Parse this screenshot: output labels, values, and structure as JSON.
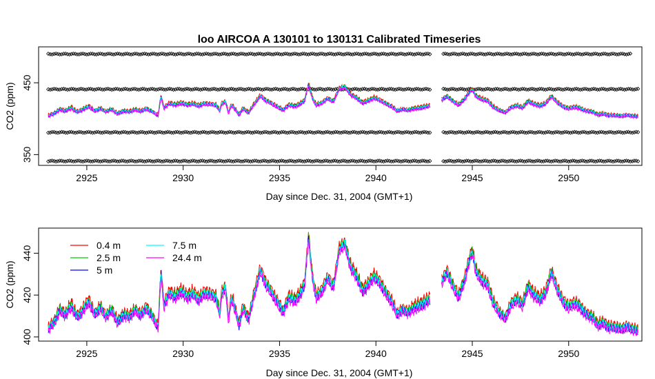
{
  "chart_data": [
    {
      "type": "scatter",
      "title": "loo   AIRCOA  A    130101  to  130131   Calibrated Timeseries",
      "xlabel": "Day since Dec. 31, 2004 (GMT+1)",
      "ylabel": "CO2 (ppm)",
      "xlim": [
        2922.5,
        2953.8
      ],
      "ylim": [
        335,
        500
      ],
      "x_ticks": [
        2925,
        2930,
        2935,
        2940,
        2945,
        2950
      ],
      "x_tick_labels": [
        "2925",
        "2930",
        "2935",
        "2940",
        "2945",
        "2950"
      ],
      "y_ticks": [
        350,
        450
      ],
      "y_tick_labels": [
        "350",
        "450"
      ],
      "calibration_levels": [
        490,
        441,
        381,
        341
      ],
      "data_gap": [
        2942.8,
        2943.4
      ],
      "series_colors": [
        "#ff0000",
        "#00cc00",
        "#0000ff",
        "#00ffff",
        "#ff00ff"
      ],
      "marker_color": "#000000",
      "grid": false
    },
    {
      "type": "line",
      "xlabel": "Day since Dec. 31, 2004 (GMT+1)",
      "ylabel": "CO2 (ppm)",
      "xlim": [
        2922.5,
        2953.8
      ],
      "ylim": [
        398,
        452
      ],
      "x_ticks": [
        2925,
        2930,
        2935,
        2940,
        2945,
        2950
      ],
      "x_tick_labels": [
        "2925",
        "2930",
        "2935",
        "2940",
        "2945",
        "2950"
      ],
      "y_ticks": [
        400,
        420,
        440
      ],
      "y_tick_labels": [
        "400",
        "420",
        "440"
      ],
      "legend_position": "top-left",
      "grid": false,
      "data_gap": [
        2942.8,
        2943.4
      ],
      "base_points": [
        [
          2923.0,
          403
        ],
        [
          2923.3,
          406
        ],
        [
          2923.6,
          412
        ],
        [
          2923.9,
          410
        ],
        [
          2924.2,
          414
        ],
        [
          2924.5,
          409
        ],
        [
          2924.8,
          412
        ],
        [
          2925.1,
          416
        ],
        [
          2925.4,
          410
        ],
        [
          2925.7,
          413
        ],
        [
          2926.0,
          409
        ],
        [
          2926.3,
          412
        ],
        [
          2926.6,
          406
        ],
        [
          2926.9,
          410
        ],
        [
          2927.2,
          409
        ],
        [
          2927.5,
          412
        ],
        [
          2927.8,
          410
        ],
        [
          2928.1,
          413
        ],
        [
          2928.4,
          409
        ],
        [
          2928.7,
          404
        ],
        [
          2928.85,
          430
        ],
        [
          2929.0,
          414
        ],
        [
          2929.3,
          420
        ],
        [
          2929.6,
          418
        ],
        [
          2929.9,
          421
        ],
        [
          2930.2,
          418
        ],
        [
          2930.5,
          420
        ],
        [
          2930.8,
          417
        ],
        [
          2931.1,
          420
        ],
        [
          2931.4,
          419
        ],
        [
          2931.7,
          418
        ],
        [
          2931.9,
          410
        ],
        [
          2932.0,
          420
        ],
        [
          2932.2,
          422
        ],
        [
          2932.35,
          407
        ],
        [
          2932.5,
          418
        ],
        [
          2932.7,
          412
        ],
        [
          2932.9,
          405
        ],
        [
          2933.1,
          413
        ],
        [
          2933.4,
          408
        ],
        [
          2933.7,
          420
        ],
        [
          2934.0,
          431
        ],
        [
          2934.3,
          424
        ],
        [
          2934.6,
          420
        ],
        [
          2934.9,
          415
        ],
        [
          2935.2,
          411
        ],
        [
          2935.5,
          418
        ],
        [
          2935.8,
          416
        ],
        [
          2936.1,
          420
        ],
        [
          2936.3,
          424
        ],
        [
          2936.5,
          447
        ],
        [
          2936.7,
          428
        ],
        [
          2936.9,
          418
        ],
        [
          2937.2,
          421
        ],
        [
          2937.5,
          427
        ],
        [
          2937.8,
          423
        ],
        [
          2938.1,
          441
        ],
        [
          2938.4,
          443
        ],
        [
          2938.7,
          432
        ],
        [
          2939.0,
          428
        ],
        [
          2939.3,
          421
        ],
        [
          2939.6,
          424
        ],
        [
          2939.9,
          428
        ],
        [
          2940.2,
          425
        ],
        [
          2940.5,
          420
        ],
        [
          2940.8,
          416
        ],
        [
          2941.1,
          410
        ],
        [
          2941.4,
          412
        ],
        [
          2941.7,
          411
        ],
        [
          2942.0,
          413
        ],
        [
          2942.3,
          414
        ],
        [
          2942.6,
          416
        ],
        [
          2942.8,
          417
        ],
        null,
        [
          2943.4,
          425
        ],
        [
          2943.7,
          430
        ],
        [
          2944.0,
          423
        ],
        [
          2944.3,
          418
        ],
        [
          2944.6,
          426
        ],
        [
          2944.8,
          434
        ],
        [
          2945.0,
          440
        ],
        [
          2945.2,
          430
        ],
        [
          2945.5,
          426
        ],
        [
          2945.8,
          424
        ],
        [
          2946.1,
          415
        ],
        [
          2946.4,
          411
        ],
        [
          2946.7,
          408
        ],
        [
          2947.0,
          414
        ],
        [
          2947.3,
          417
        ],
        [
          2947.6,
          414
        ],
        [
          2947.9,
          423
        ],
        [
          2948.2,
          419
        ],
        [
          2948.5,
          417
        ],
        [
          2948.8,
          420
        ],
        [
          2949.1,
          430
        ],
        [
          2949.4,
          422
        ],
        [
          2949.7,
          416
        ],
        [
          2950.0,
          413
        ],
        [
          2950.3,
          415
        ],
        [
          2950.6,
          413
        ],
        [
          2950.9,
          410
        ],
        [
          2951.2,
          409
        ],
        [
          2951.5,
          405
        ],
        [
          2951.8,
          406
        ],
        [
          2952.1,
          404
        ],
        [
          2952.4,
          404
        ],
        [
          2952.7,
          403
        ],
        [
          2953.0,
          404
        ],
        [
          2953.3,
          403
        ],
        [
          2953.6,
          402
        ]
      ],
      "series": [
        {
          "name": "0.4 m",
          "color": "#ff0000",
          "offset": 2.2
        },
        {
          "name": "2.5 m",
          "color": "#00cc00",
          "offset": 1.2
        },
        {
          "name": "5 m",
          "color": "#0000ff",
          "offset": 0.4
        },
        {
          "name": "7.5 m",
          "color": "#00ffff",
          "offset": 0.8
        },
        {
          "name": "24.4 m",
          "color": "#ff00ff",
          "offset": -0.3
        }
      ]
    }
  ]
}
